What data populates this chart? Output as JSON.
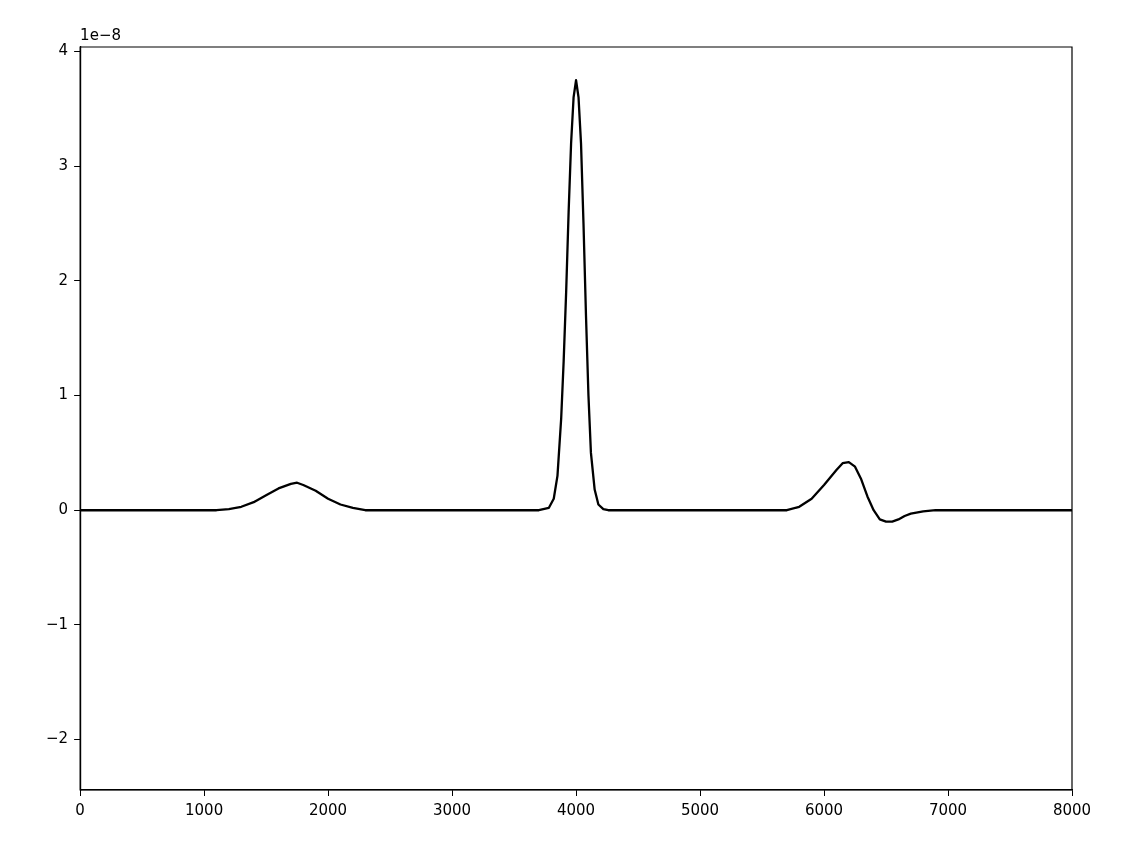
{
  "chart_data": {
    "type": "line",
    "annotations": [
      "1e−8"
    ],
    "x": [
      0,
      1000,
      1100,
      1200,
      1300,
      1400,
      1500,
      1600,
      1700,
      1750,
      1800,
      1900,
      2000,
      2100,
      2200,
      2300,
      2500,
      3700,
      3780,
      3820,
      3850,
      3880,
      3900,
      3920,
      3940,
      3960,
      3980,
      4000,
      4020,
      4040,
      4060,
      4080,
      4100,
      4120,
      4150,
      4180,
      4220,
      4260,
      4300,
      5000,
      5600,
      5700,
      5800,
      5900,
      6000,
      6100,
      6150,
      6200,
      6250,
      6300,
      6350,
      6400,
      6450,
      6500,
      6550,
      6600,
      6650,
      6700,
      6800,
      6900,
      7000,
      8000
    ],
    "series": [
      {
        "color": "#000000",
        "values": [
          0,
          0,
          0,
          0.01,
          0.03,
          0.07,
          0.13,
          0.19,
          0.23,
          0.24,
          0.22,
          0.17,
          0.1,
          0.05,
          0.02,
          0,
          0,
          0,
          0.02,
          0.1,
          0.3,
          0.8,
          1.3,
          1.9,
          2.6,
          3.2,
          3.6,
          3.75,
          3.6,
          3.2,
          2.5,
          1.7,
          1,
          0.5,
          0.18,
          0.05,
          0.01,
          0,
          0,
          0,
          0,
          0,
          0.03,
          0.1,
          0.22,
          0.35,
          0.41,
          0.42,
          0.38,
          0.27,
          0.12,
          0,
          -0.08,
          -0.1,
          -0.1,
          -0.08,
          -0.05,
          -0.03,
          -0.01,
          0,
          0,
          0
        ]
      }
    ],
    "xlim": [
      0,
      8000
    ],
    "xticks": [
      0,
      1000,
      2000,
      3000,
      4000,
      5000,
      6000,
      7000,
      8000
    ],
    "ylim": [
      -2.44,
      4.04
    ],
    "yticks": [
      {
        "value": -2,
        "label": "−2"
      },
      {
        "value": -1,
        "label": "−1"
      },
      0,
      1,
      2,
      3,
      4
    ],
    "grid": false,
    "legend": false,
    "marker": "none",
    "line_style": "solid"
  }
}
